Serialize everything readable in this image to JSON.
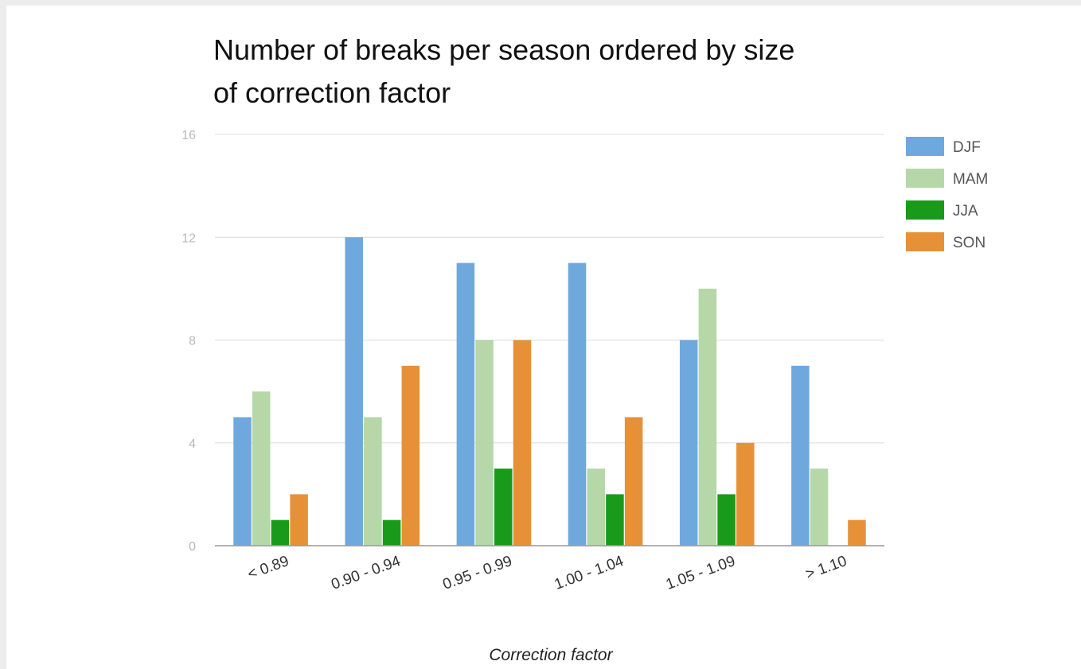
{
  "chart_data": {
    "type": "bar",
    "title_lines": [
      "Number of breaks per season ordered by size",
      "of correction factor"
    ],
    "xlabel": "Correction factor",
    "ylabel": "",
    "categories": [
      "< 0.89",
      "0.90 - 0.94",
      "0.95 - 0.99",
      "1.00 - 1.04",
      "1.05 - 1.09",
      "> 1.10"
    ],
    "series": [
      {
        "name": "DJF",
        "color": "#6fa8dc",
        "values": [
          5,
          12,
          11,
          11,
          8,
          7
        ]
      },
      {
        "name": "MAM",
        "color": "#b6d7a8",
        "values": [
          6,
          5,
          8,
          3,
          10,
          3
        ]
      },
      {
        "name": "JJA",
        "color": "#1a9a1a",
        "values": [
          1,
          1,
          3,
          2,
          2,
          0
        ]
      },
      {
        "name": "SON",
        "color": "#e69138",
        "values": [
          2,
          7,
          8,
          5,
          4,
          1
        ]
      }
    ],
    "ylim": [
      0,
      16
    ],
    "yticks": [
      "0",
      "4",
      "8",
      "12",
      "16"
    ],
    "grid": true,
    "legend_position": "right"
  }
}
